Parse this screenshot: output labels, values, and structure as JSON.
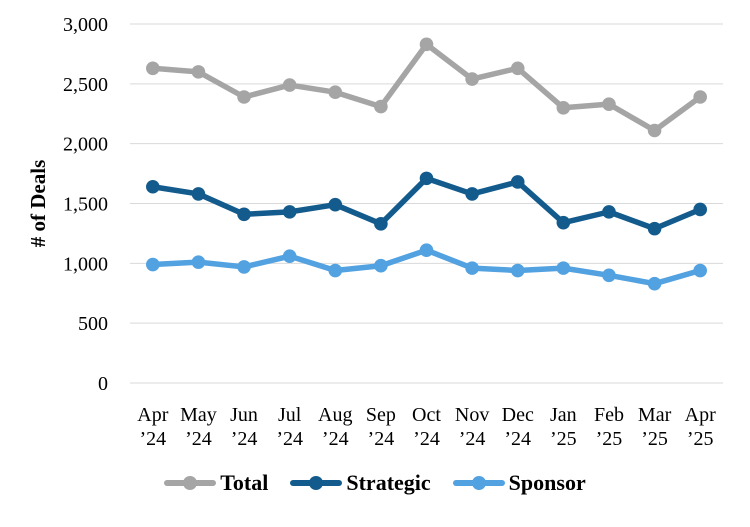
{
  "chart_data": {
    "type": "line",
    "title": "",
    "xlabel": "",
    "ylabel": "# of Deals",
    "ylim": [
      0,
      3000
    ],
    "ytick_step": 500,
    "yticks": [
      {
        "value": 0,
        "label": "0"
      },
      {
        "value": 500,
        "label": "500"
      },
      {
        "value": 1000,
        "label": "1,000"
      },
      {
        "value": 1500,
        "label": "1,500"
      },
      {
        "value": 2000,
        "label": "2,000"
      },
      {
        "value": 2500,
        "label": "2,500"
      },
      {
        "value": 3000,
        "label": "3,000"
      }
    ],
    "categories": [
      "Apr ’24",
      "May ’24",
      "Jun ’24",
      "Jul ’24",
      "Aug ’24",
      "Sep ’24",
      "Oct ’24",
      "Nov ’24",
      "Dec ’24",
      "Jan ’25",
      "Feb ’25",
      "Mar ’25",
      "Apr ’25"
    ],
    "series": [
      {
        "name": "Total",
        "color": "#A5A5A5",
        "values": [
          2630,
          2600,
          2390,
          2490,
          2430,
          2310,
          2830,
          2540,
          2630,
          2300,
          2330,
          2110,
          2390
        ]
      },
      {
        "name": "Strategic",
        "color": "#135B8D",
        "values": [
          1640,
          1580,
          1410,
          1430,
          1490,
          1330,
          1710,
          1580,
          1680,
          1340,
          1430,
          1290,
          1450
        ]
      },
      {
        "name": "Sponsor",
        "color": "#52A1E0",
        "values": [
          990,
          1010,
          970,
          1060,
          940,
          980,
          1110,
          960,
          940,
          960,
          900,
          830,
          940
        ]
      }
    ],
    "grid": {
      "horizontal": true,
      "vertical": false,
      "color": "#D9D9D9"
    },
    "legend_position": "bottom",
    "text_color": "#000000",
    "background": "#FFFFFF"
  }
}
